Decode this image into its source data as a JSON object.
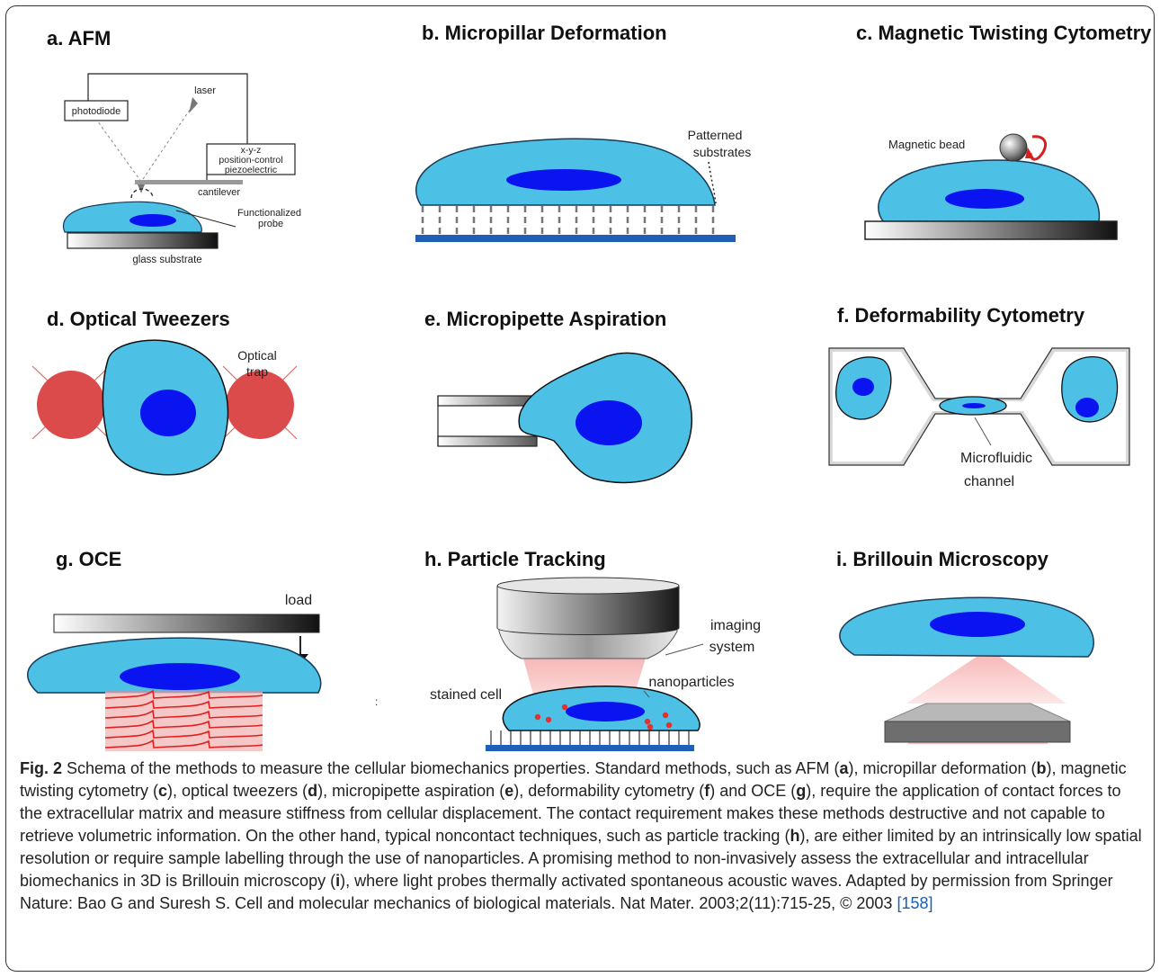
{
  "panels": {
    "a": {
      "title": "a. AFM",
      "photodiode": "photodiode",
      "laser": "laser",
      "piezo": [
        "x-y-z",
        "position-control",
        "piezoelectric"
      ],
      "cantilever": "cantilever",
      "probe": [
        "Functionalized",
        "probe"
      ],
      "substrate": "glass substrate"
    },
    "b": {
      "title": "b. Micropillar Deformation",
      "substrates": [
        "Patterned",
        "substrates"
      ]
    },
    "c": {
      "title": "c. Magnetic Twisting Cytometry",
      "bead": "Magnetic bead"
    },
    "d": {
      "title": "d. Optical Tweezers",
      "trap": [
        "Optical",
        "trap"
      ]
    },
    "e": {
      "title": "e. Micropipette Aspiration"
    },
    "f": {
      "title": "f. Deformability Cytometry",
      "channel": [
        "Microfluidic",
        "channel"
      ]
    },
    "g": {
      "title": "g. OCE",
      "load": "load"
    },
    "h": {
      "title": "h. Particle Tracking",
      "imaging": [
        "imaging",
        "system"
      ],
      "nanoparticles": "nanoparticles",
      "stained": "stained cell"
    },
    "i": {
      "title": "i. Brillouin Microscopy"
    }
  },
  "caption": {
    "fig_label": "Fig. 2",
    "t1": " Schema of the methods to measure the cellular biomechanics properties. Standard methods, such as AFM (",
    "ra": "a",
    "t2": "), micropillar deformation (",
    "rb": "b",
    "t3": "), magnetic twisting cytometry (",
    "rc": "c",
    "t4": "), optical tweezers (",
    "rd": "d",
    "t5": "), micropipette aspiration (",
    "re": "e",
    "t6": "), deformability cytometry (",
    "rf": "f",
    "t7": ") and OCE (",
    "rg": "g",
    "t8": "), require the application of contact forces to the extracellular matrix and measure stiffness from cellular displacement. The contact requirement makes these methods destructive and not capable to retrieve volumetric information. On the other hand, typical noncontact techniques, such as particle tracking (",
    "rh": "h",
    "t9": "), are either limited by an intrinsically low spatial resolution or require sample labelling through the use of nanoparticles. A promising method to non-invasively assess the extracellular and intracellular biomechanics in 3D is Brillouin microscopy (",
    "ri": "i",
    "t10": "), where light probes thermally activated spontaneous acoustic waves. Adapted by permission from Springer Nature: Bao G and Suresh S. Cell and molecular mechanics of biological materials. Nat Mater. 2003;2(11):715-25, © 2003 ",
    "ref": "[158]"
  },
  "colors": {
    "cell": "#4dc0e6",
    "nucleus": "#0a14f0",
    "bead_red": "#dc4b4b",
    "substrate_blue": "#1f5fb8",
    "light_pink": "#f9c4c4",
    "wave_red": "#e02020"
  }
}
